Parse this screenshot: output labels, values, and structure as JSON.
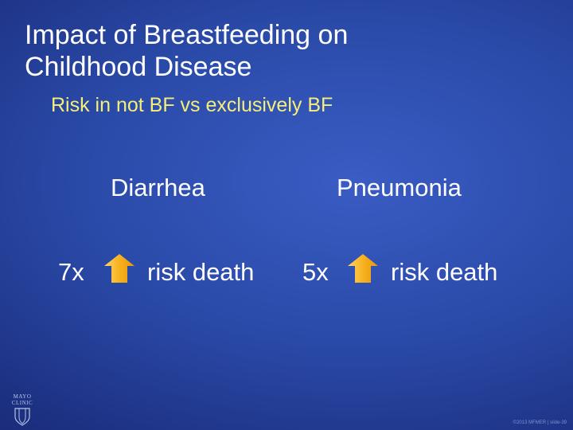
{
  "slide": {
    "title_line1": "Impact of Breastfeeding on",
    "title_line2": "Childhood Disease",
    "subtitle": "Risk in not BF vs exclusively BF",
    "colors": {
      "subtitle": "#f5ee78",
      "arrow": "#f5a623",
      "background": "#2a4aa8"
    }
  },
  "columns": [
    {
      "heading": "Diarrhea",
      "multiplier": "7x",
      "icon": "arrow-up-icon",
      "label": "risk death"
    },
    {
      "heading": "Pneumonia",
      "multiplier": "5x",
      "icon": "arrow-up-icon",
      "label": "risk death"
    }
  ],
  "logo": {
    "line1": "MAYO",
    "line2": "CLINIC"
  },
  "footer": {
    "text": "©2013 MFMER | slide-39"
  }
}
